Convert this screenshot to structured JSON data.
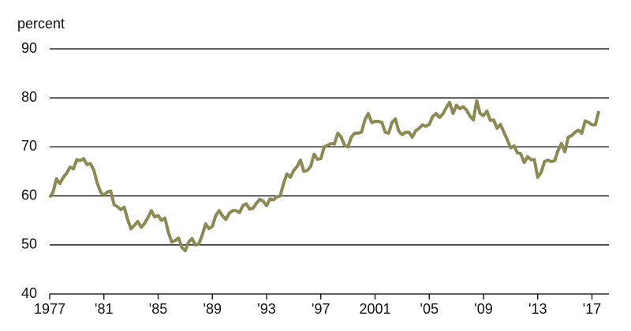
{
  "chart_data": {
    "type": "line",
    "y_label": "percent",
    "color": "#8c8a53",
    "x": [
      1977,
      1977.25,
      1977.5,
      1977.75,
      1978,
      1978.25,
      1978.5,
      1978.75,
      1979,
      1979.25,
      1979.5,
      1979.75,
      1980,
      1980.25,
      1980.5,
      1980.75,
      1981,
      1981.25,
      1981.5,
      1981.75,
      1982,
      1982.25,
      1982.5,
      1982.75,
      1983,
      1983.25,
      1983.5,
      1983.75,
      1984,
      1984.25,
      1984.5,
      1984.75,
      1985,
      1985.25,
      1985.5,
      1985.75,
      1986,
      1986.25,
      1986.5,
      1986.75,
      1987,
      1987.25,
      1987.5,
      1987.75,
      1988,
      1988.25,
      1988.5,
      1988.75,
      1989,
      1989.25,
      1989.5,
      1989.75,
      1990,
      1990.25,
      1990.5,
      1990.75,
      1991,
      1991.25,
      1991.5,
      1991.75,
      1992,
      1992.25,
      1992.5,
      1992.75,
      1993,
      1993.25,
      1993.5,
      1993.75,
      1994,
      1994.25,
      1994.5,
      1994.75,
      1995,
      1995.25,
      1995.5,
      1995.75,
      1996,
      1996.25,
      1996.5,
      1996.75,
      1997,
      1997.25,
      1997.5,
      1997.75,
      1998,
      1998.25,
      1998.5,
      1998.75,
      1999,
      1999.25,
      1999.5,
      1999.75,
      2000,
      2000.25,
      2000.5,
      2000.75,
      2001,
      2001.25,
      2001.5,
      2001.75,
      2002,
      2002.25,
      2002.5,
      2002.75,
      2003,
      2003.25,
      2003.5,
      2003.75,
      2004,
      2004.25,
      2004.5,
      2004.75,
      2005,
      2005.25,
      2005.5,
      2005.75,
      2006,
      2006.25,
      2006.5,
      2006.75,
      2007,
      2007.25,
      2007.5,
      2007.75,
      2008,
      2008.25,
      2008.5,
      2008.75,
      2009,
      2009.25,
      2009.5,
      2009.75,
      2010,
      2010.25,
      2010.5,
      2010.75,
      2011,
      2011.25,
      2011.5,
      2011.75,
      2012,
      2012.25,
      2012.5,
      2012.75,
      2013,
      2013.25,
      2013.5,
      2013.75,
      2014,
      2014.25,
      2014.5,
      2014.75,
      2015,
      2015.25,
      2015.5,
      2015.75,
      2016,
      2016.25,
      2016.5,
      2016.75,
      2017,
      2017.25,
      2017.5
    ],
    "values": [
      59.7,
      60.8,
      63.5,
      62.5,
      63.8,
      64.6,
      65.9,
      65.5,
      67.4,
      67.2,
      67.6,
      66.4,
      66.6,
      65.3,
      62.7,
      60.8,
      60.1,
      60.8,
      61.0,
      58.2,
      57.8,
      57.2,
      57.7,
      55.2,
      53.3,
      54.0,
      54.8,
      53.6,
      54.4,
      55.6,
      57.0,
      55.7,
      56.0,
      55.0,
      55.5,
      52.6,
      50.6,
      50.9,
      51.4,
      49.5,
      48.8,
      50.6,
      51.3,
      50.0,
      50.2,
      52.0,
      54.3,
      53.3,
      53.8,
      56.0,
      57.0,
      55.9,
      55.2,
      56.5,
      57.0,
      57.0,
      56.6,
      58.0,
      58.4,
      57.3,
      57.5,
      58.5,
      59.3,
      58.9,
      58.0,
      59.4,
      59.2,
      59.8,
      60.0,
      62.5,
      64.5,
      63.8,
      65.2,
      66.0,
      67.3,
      65.0,
      65.2,
      66.0,
      68.5,
      67.5,
      67.6,
      70.0,
      70.3,
      70.7,
      70.6,
      72.8,
      72.0,
      70.3,
      70.0,
      72.0,
      72.8,
      72.8,
      73.0,
      75.5,
      76.8,
      75.0,
      75.2,
      75.2,
      75.0,
      73.0,
      72.8,
      75.0,
      75.7,
      73.2,
      72.5,
      73.0,
      73.0,
      72.0,
      73.3,
      73.8,
      74.5,
      74.2,
      74.6,
      76.2,
      76.8,
      76.0,
      76.7,
      78.0,
      79.1,
      76.8,
      78.5,
      77.8,
      78.2,
      77.5,
      76.3,
      75.5,
      79.4,
      76.8,
      76.4,
      77.3,
      75.4,
      75.5,
      73.8,
      74.6,
      73.0,
      71.5,
      69.8,
      70.2,
      68.8,
      68.6,
      66.8,
      68.0,
      67.4,
      67.4,
      63.8,
      64.8,
      67.0,
      67.3,
      67.0,
      67.2,
      69.3,
      70.7,
      69.0,
      72.0,
      72.3,
      73.0,
      73.4,
      72.8,
      75.3,
      75.0,
      74.5,
      74.5,
      77.3
    ],
    "xlim": [
      1977,
      2018.25
    ],
    "xticks": [
      1977,
      {
        "value": 1981,
        "label": "'81"
      },
      {
        "value": 1985,
        "label": "'85"
      },
      {
        "value": 1989,
        "label": "'89"
      },
      {
        "value": 1993,
        "label": "'93"
      },
      {
        "value": 1997,
        "label": "'97"
      },
      2001,
      {
        "value": 2005,
        "label": "'05"
      },
      {
        "value": 2009,
        "label": "'09"
      },
      {
        "value": 2013,
        "label": "'13"
      },
      {
        "value": 2017,
        "label": "'17"
      }
    ],
    "ylim": [
      40,
      90
    ],
    "yticks": [
      40,
      50,
      60,
      70,
      80,
      90
    ],
    "grid": true
  }
}
